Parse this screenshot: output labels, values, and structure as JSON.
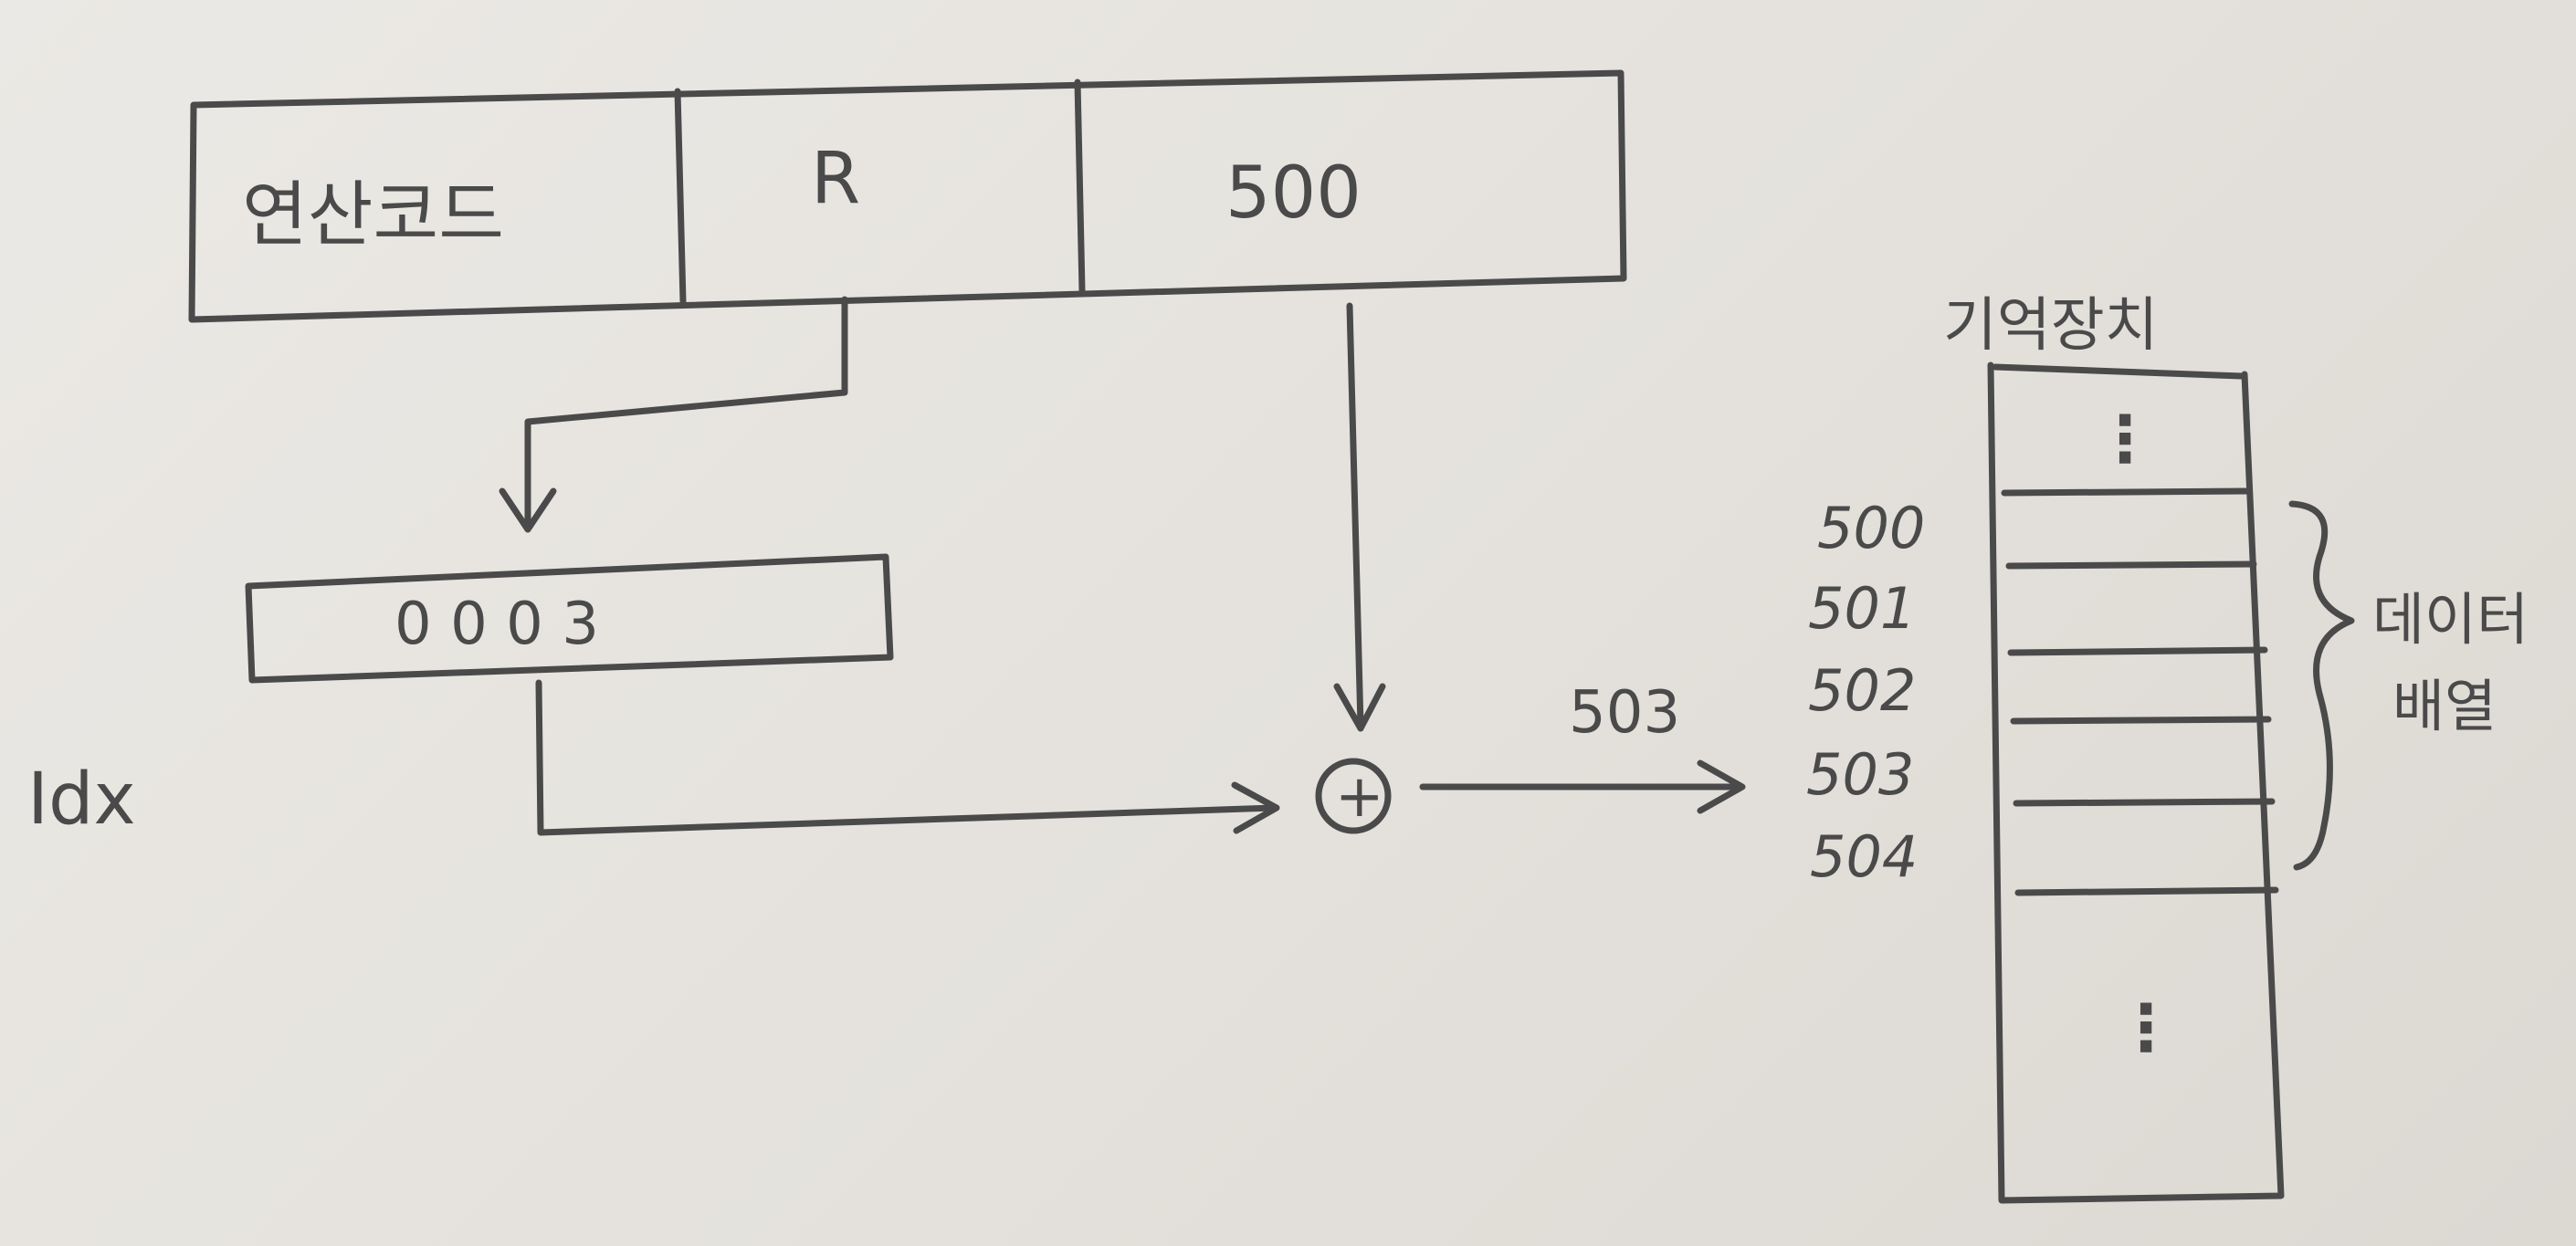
{
  "instruction": {
    "opcode_label": "연산코드",
    "register_label": "R",
    "address_value": "500"
  },
  "index_register": {
    "value": "0 0 0 3",
    "label": "Idx"
  },
  "adder": {
    "symbol": "+",
    "result_label": "503"
  },
  "memory": {
    "title": "기억장치",
    "top_ellipsis": "⋮",
    "bottom_ellipsis": "⋮",
    "addresses": [
      "500",
      "501",
      "502",
      "503",
      "504"
    ],
    "brace_label_line1": "데이터",
    "brace_label_line2": "배열"
  }
}
